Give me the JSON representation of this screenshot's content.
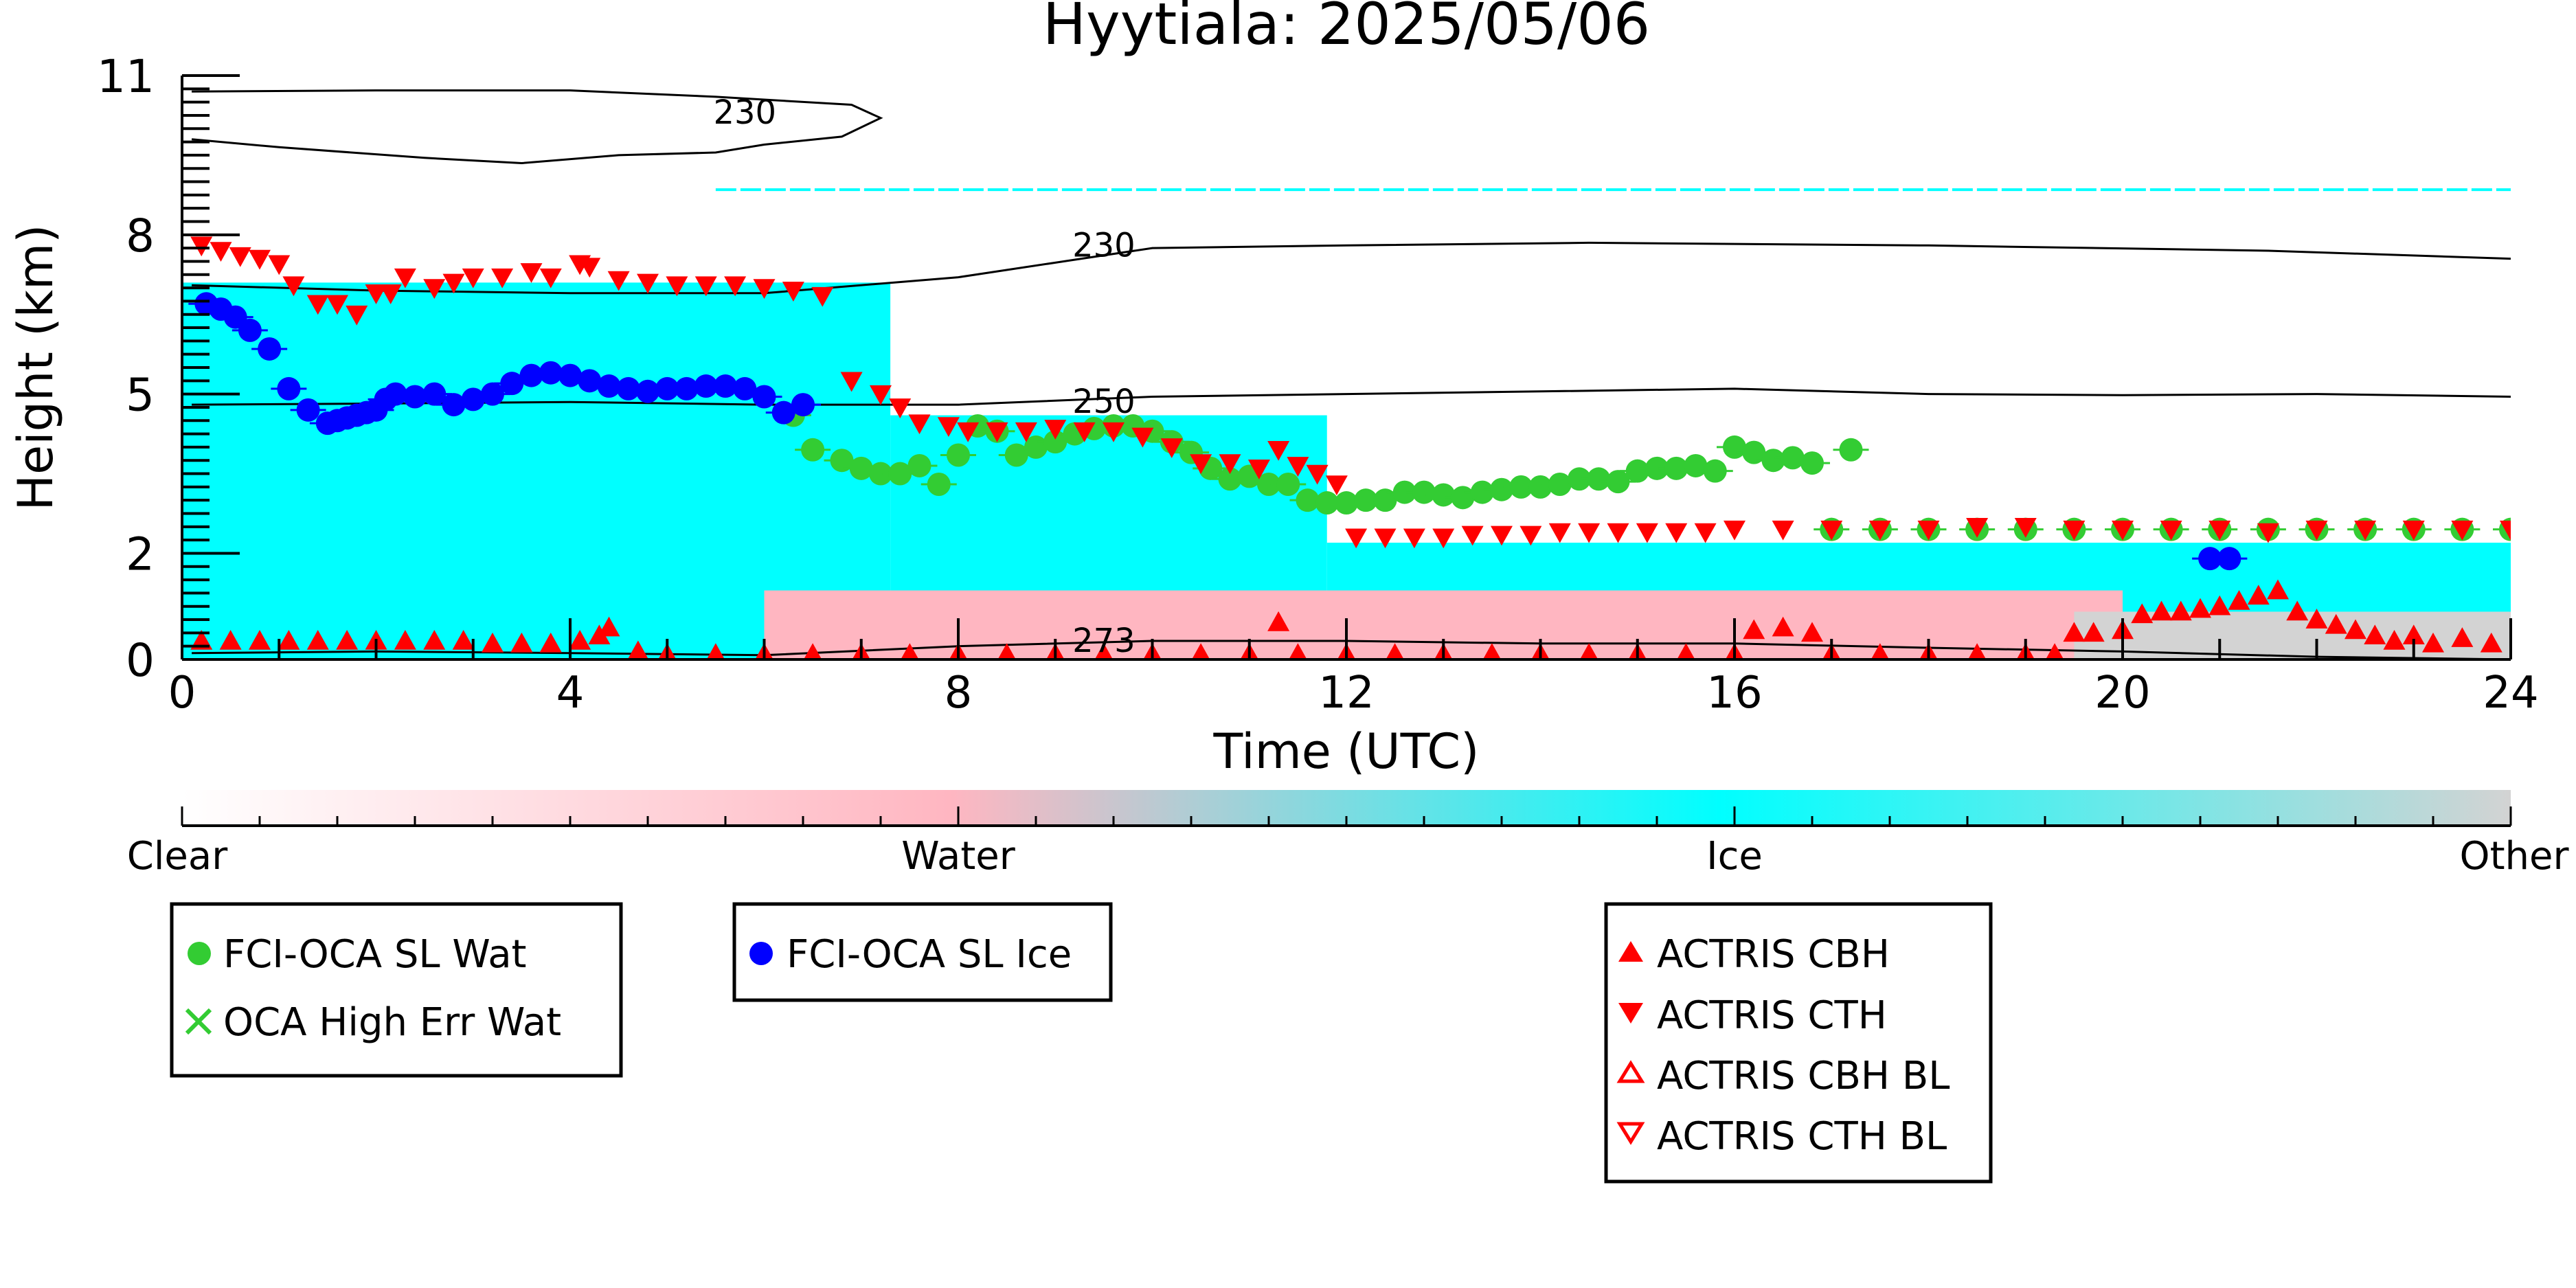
{
  "chart_data": {
    "type": "scatter",
    "title": "Hyytiala: 2025/05/06",
    "xlabel": "Time (UTC)",
    "ylabel": "Height (km)",
    "xlim": [
      0,
      24
    ],
    "ylim": [
      0,
      11
    ],
    "x_ticks": [
      0,
      4,
      8,
      12,
      16,
      20,
      24
    ],
    "y_ticks": [
      0,
      2,
      5,
      8,
      11
    ],
    "background_classification": {
      "colors": {
        "Clear": "#ffffff",
        "Water": "#ffb6c1",
        "Ice": "#00ffff",
        "Other": "#d3d3d3"
      },
      "regions": [
        {
          "class": "Ice",
          "x_start": 0.0,
          "x_end": 7.3,
          "y_top": 7.1
        },
        {
          "class": "Ice",
          "x_start": 7.3,
          "x_end": 11.8,
          "y_top": 4.6
        },
        {
          "class": "Ice",
          "x_start": 11.8,
          "x_end": 24.0,
          "y_top": 2.2
        },
        {
          "class": "Water",
          "x_start": 6.0,
          "x_end": 20.0,
          "y_top": 1.3
        },
        {
          "class": "Other",
          "x_start": 19.5,
          "x_end": 24.0,
          "y_top": 0.9
        }
      ],
      "thin_ice_layer": {
        "x_start": 5.5,
        "x_end": 24.0,
        "y": 8.85
      }
    },
    "colorbar": {
      "labels": [
        "Clear",
        "Water",
        "Ice",
        "Other"
      ],
      "colors": [
        "#ffffff",
        "#ffb6c1",
        "#00ffff",
        "#d3d3d3"
      ]
    },
    "contours": [
      {
        "label": "230",
        "label_x": 5.8,
        "label_y": 10.3,
        "points": [
          [
            0.1,
            10.7
          ],
          [
            2.0,
            10.72
          ],
          [
            4.0,
            10.72
          ],
          [
            5.5,
            10.6
          ],
          [
            6.9,
            10.45
          ],
          [
            7.2,
            10.2
          ],
          [
            6.8,
            9.85
          ],
          [
            6.0,
            9.7
          ],
          [
            5.5,
            9.55
          ],
          [
            4.5,
            9.5
          ],
          [
            3.5,
            9.35
          ],
          [
            2.5,
            9.45
          ],
          [
            1.0,
            9.65
          ],
          [
            0.1,
            9.8
          ]
        ]
      },
      {
        "label": "230",
        "label_x": 9.5,
        "label_y": 7.8,
        "points": [
          [
            0.1,
            7.05
          ],
          [
            2.0,
            6.95
          ],
          [
            4.0,
            6.9
          ],
          [
            6.0,
            6.9
          ],
          [
            8.0,
            7.2
          ],
          [
            10.0,
            7.75
          ],
          [
            12.0,
            7.8
          ],
          [
            14.5,
            7.85
          ],
          [
            18.0,
            7.8
          ],
          [
            21.5,
            7.7
          ],
          [
            24.0,
            7.55
          ]
        ]
      },
      {
        "label": "250",
        "label_x": 9.5,
        "label_y": 4.85,
        "points": [
          [
            0.1,
            4.8
          ],
          [
            2.0,
            4.82
          ],
          [
            4.0,
            4.85
          ],
          [
            6.0,
            4.8
          ],
          [
            8.0,
            4.8
          ],
          [
            10.0,
            4.95
          ],
          [
            12.0,
            5.0
          ],
          [
            14.0,
            5.05
          ],
          [
            16.0,
            5.1
          ],
          [
            18.0,
            5.0
          ],
          [
            20.0,
            4.98
          ],
          [
            22.0,
            5.0
          ],
          [
            24.0,
            4.95
          ]
        ]
      },
      {
        "label": "273",
        "label_x": 9.5,
        "label_y": 0.35,
        "points": [
          [
            0.1,
            0.12
          ],
          [
            2.0,
            0.15
          ],
          [
            4.0,
            0.12
          ],
          [
            6.0,
            0.08
          ],
          [
            8.0,
            0.25
          ],
          [
            10.0,
            0.35
          ],
          [
            12.0,
            0.35
          ],
          [
            14.0,
            0.3
          ],
          [
            16.0,
            0.3
          ],
          [
            18.0,
            0.22
          ],
          [
            20.0,
            0.15
          ],
          [
            22.0,
            0.05
          ],
          [
            24.0,
            0.0
          ]
        ]
      }
    ],
    "series": [
      {
        "name": "FCI-OCA SL Wat",
        "color": "#33cc33",
        "marker": "circle",
        "x": [
          6.3,
          6.5,
          6.8,
          7.0,
          7.2,
          7.4,
          7.6,
          7.8,
          8.0,
          8.2,
          8.4,
          8.6,
          8.8,
          9.0,
          9.2,
          9.4,
          9.6,
          9.8,
          10.0,
          10.2,
          10.4,
          10.6,
          10.8,
          11.0,
          11.2,
          11.4,
          11.6,
          11.8,
          12.0,
          12.2,
          12.4,
          12.6,
          12.8,
          13.0,
          13.2,
          13.4,
          13.6,
          13.8,
          14.0,
          14.2,
          14.4,
          14.6,
          14.8,
          15.0,
          15.2,
          15.4,
          15.6,
          15.8,
          16.0,
          16.2,
          16.4,
          16.6,
          16.8,
          17.2,
          17.0,
          17.5,
          18.0,
          18.5,
          19.0,
          19.5,
          20.0,
          20.5,
          21.0,
          21.5,
          22.0,
          22.5,
          23.0,
          23.5,
          24.0
        ],
        "y": [
          4.6,
          3.95,
          3.75,
          3.6,
          3.5,
          3.5,
          3.65,
          3.3,
          3.85,
          4.4,
          4.3,
          3.85,
          4.0,
          4.1,
          4.25,
          4.35,
          4.4,
          4.4,
          4.3,
          4.1,
          3.9,
          3.6,
          3.4,
          3.45,
          3.3,
          3.3,
          3.0,
          2.95,
          2.95,
          3.0,
          3.0,
          3.15,
          3.15,
          3.1,
          3.05,
          3.15,
          3.2,
          3.25,
          3.25,
          3.3,
          3.4,
          3.4,
          3.35,
          3.55,
          3.6,
          3.6,
          3.65,
          3.55,
          4.0,
          3.9,
          3.75,
          3.8,
          3.7,
          3.95,
          2.45,
          2.45,
          2.45,
          2.45,
          2.45,
          2.45,
          2.45,
          2.45,
          2.45,
          2.45,
          2.45,
          2.45,
          2.45,
          2.45,
          2.45
        ]
      },
      {
        "name": "OCA High Err Wat",
        "color": "#33cc33",
        "marker": "x",
        "x": [],
        "y": []
      },
      {
        "name": "FCI-OCA SL Ice",
        "color": "#0000ff",
        "marker": "circle",
        "x": [
          0.25,
          0.4,
          0.55,
          0.7,
          0.9,
          1.1,
          1.3,
          1.5,
          1.6,
          1.7,
          1.8,
          1.9,
          2.0,
          2.1,
          2.2,
          2.4,
          2.6,
          2.8,
          3.0,
          3.2,
          3.4,
          3.6,
          3.8,
          4.0,
          4.2,
          4.4,
          4.6,
          4.8,
          5.0,
          5.2,
          5.4,
          5.6,
          5.8,
          6.0,
          6.2,
          6.4,
          20.9,
          21.1
        ],
        "y": [
          6.7,
          6.6,
          6.45,
          6.2,
          5.85,
          5.1,
          4.7,
          4.45,
          4.5,
          4.55,
          4.6,
          4.65,
          4.7,
          4.9,
          5.0,
          4.95,
          5.0,
          4.8,
          4.9,
          5.0,
          5.2,
          5.35,
          5.4,
          5.35,
          5.25,
          5.15,
          5.1,
          5.05,
          5.1,
          5.1,
          5.15,
          5.15,
          5.1,
          4.95,
          4.65,
          4.8,
          1.9,
          1.9
        ]
      },
      {
        "name": "ACTRIS CBH",
        "color": "#ff0000",
        "marker": "triangle-up",
        "x": [
          0.2,
          0.5,
          0.8,
          1.1,
          1.4,
          1.7,
          2.0,
          2.3,
          2.6,
          2.9,
          3.2,
          3.5,
          3.8,
          4.1,
          4.3,
          4.4,
          4.7,
          5.0,
          5.5,
          6.0,
          6.5,
          7.0,
          7.5,
          8.0,
          8.5,
          9.0,
          9.5,
          10.0,
          10.5,
          11.0,
          11.3,
          11.5,
          12.0,
          12.5,
          13.0,
          13.5,
          14.0,
          14.5,
          15.0,
          15.5,
          16.0,
          16.2,
          16.5,
          16.8,
          17.0,
          17.5,
          18.0,
          18.5,
          19.0,
          19.3,
          19.5,
          19.7,
          20.0,
          20.2,
          20.4,
          20.6,
          20.8,
          21.0,
          21.2,
          21.4,
          21.6,
          21.8,
          22.0,
          22.2,
          22.4,
          22.6,
          22.8,
          23.0,
          23.2,
          23.5,
          23.8
        ],
        "y": [
          0.35,
          0.35,
          0.35,
          0.35,
          0.35,
          0.35,
          0.35,
          0.35,
          0.35,
          0.35,
          0.3,
          0.3,
          0.3,
          0.35,
          0.45,
          0.6,
          0.15,
          0.1,
          0.1,
          0.1,
          0.1,
          0.1,
          0.1,
          0.1,
          0.1,
          0.1,
          0.1,
          0.1,
          0.1,
          0.1,
          0.7,
          0.1,
          0.1,
          0.1,
          0.1,
          0.1,
          0.1,
          0.1,
          0.1,
          0.1,
          0.1,
          0.55,
          0.6,
          0.5,
          0.1,
          0.1,
          0.1,
          0.1,
          0.1,
          0.1,
          0.5,
          0.5,
          0.55,
          0.85,
          0.9,
          0.9,
          0.95,
          1.0,
          1.1,
          1.2,
          1.3,
          0.9,
          0.75,
          0.65,
          0.55,
          0.45,
          0.35,
          0.45,
          0.3,
          0.4,
          0.3
        ]
      },
      {
        "name": "ACTRIS CTH",
        "color": "#ff0000",
        "marker": "triangle-down",
        "x": [
          0.2,
          0.4,
          0.6,
          0.8,
          1.0,
          1.15,
          1.4,
          1.6,
          1.8,
          2.0,
          2.15,
          2.3,
          2.6,
          2.8,
          3.0,
          3.3,
          3.6,
          3.8,
          4.1,
          4.2,
          4.5,
          4.8,
          5.1,
          5.4,
          5.7,
          6.0,
          6.3,
          6.6,
          6.9,
          7.2,
          7.4,
          7.6,
          7.9,
          8.1,
          8.4,
          8.7,
          9.0,
          9.3,
          9.6,
          9.9,
          10.2,
          10.5,
          10.8,
          11.1,
          11.3,
          11.5,
          11.7,
          11.9,
          12.1,
          12.4,
          12.7,
          13.0,
          13.3,
          13.6,
          13.9,
          14.2,
          14.5,
          14.8,
          15.1,
          15.4,
          15.7,
          16.0,
          16.5,
          17.0,
          17.5,
          18.0,
          18.5,
          19.0,
          19.5,
          20.0,
          20.5,
          21.0,
          21.5,
          22.0,
          22.5,
          23.0,
          23.5,
          24.0
        ],
        "y": [
          7.8,
          7.7,
          7.6,
          7.55,
          7.45,
          7.05,
          6.7,
          6.7,
          6.5,
          6.9,
          6.9,
          7.2,
          7.0,
          7.1,
          7.2,
          7.2,
          7.3,
          7.2,
          7.45,
          7.4,
          7.15,
          7.1,
          7.05,
          7.05,
          7.05,
          7.0,
          6.95,
          6.85,
          5.25,
          5.0,
          4.75,
          4.45,
          4.4,
          4.3,
          4.3,
          4.3,
          4.35,
          4.3,
          4.3,
          4.2,
          4.0,
          3.7,
          3.7,
          3.6,
          3.95,
          3.65,
          3.5,
          3.3,
          2.3,
          2.3,
          2.3,
          2.3,
          2.35,
          2.35,
          2.35,
          2.4,
          2.4,
          2.4,
          2.4,
          2.4,
          2.4,
          2.45,
          2.45,
          2.45,
          2.45,
          2.45,
          2.5,
          2.5,
          2.45,
          2.45,
          2.45,
          2.45,
          2.4,
          2.45,
          2.45,
          2.45,
          2.45,
          2.45
        ]
      },
      {
        "name": "ACTRIS CBH BL",
        "color": "#ff0000",
        "marker": "triangle-up-open",
        "x": [],
        "y": []
      },
      {
        "name": "ACTRIS CTH BL",
        "color": "#ff0000",
        "marker": "triangle-down-open",
        "x": [],
        "y": []
      }
    ]
  }
}
